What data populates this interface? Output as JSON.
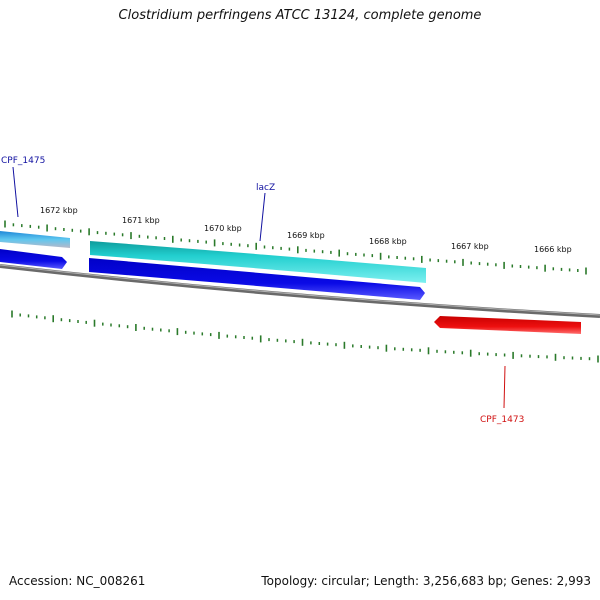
{
  "title": "Clostridium perfringens ATCC 13124, complete genome",
  "footer": {
    "accession": "Accession: NC_008261",
    "summary": "Topology: circular; Length: 3,256,683 bp; Genes: 2,993"
  },
  "scale_labels": [
    "1672 kbp",
    "1671 kbp",
    "1670 kbp",
    "1669 kbp",
    "1668 kbp",
    "1667 kbp",
    "1666 kbp"
  ],
  "gene_labels": {
    "cpf1475": "CPF_1475",
    "lacz": "lacZ",
    "cpf1473": "CPF_1473"
  },
  "colors": {
    "tick": "#2a7a2a",
    "backbone": "#7a7a7a",
    "cyan_gene": "#20c8c8",
    "blue_gene": "#0a0adc",
    "red_gene": "#e41010",
    "label_blue": "#1010a0",
    "label_red": "#d01010"
  }
}
